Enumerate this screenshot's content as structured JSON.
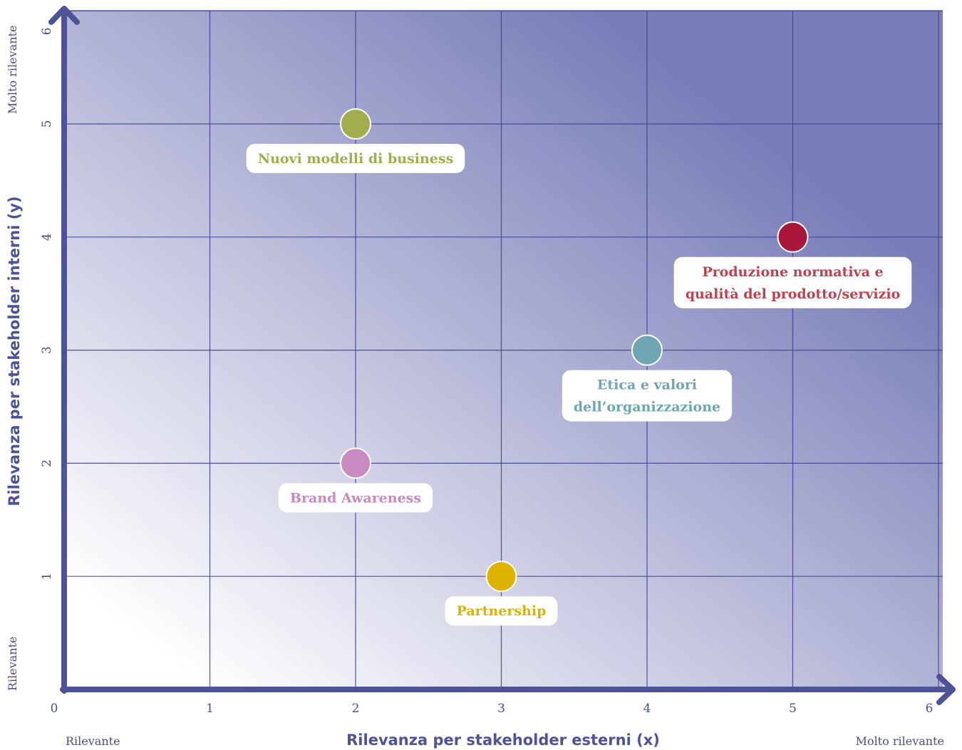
{
  "chart_data": {
    "type": "scatter",
    "title": "",
    "xlabel": "Rilevanza per stakeholder esterni (x)",
    "ylabel": "Rilevanza per stakeholder interni (y)",
    "xlim": [
      0,
      6
    ],
    "ylim": [
      0,
      6
    ],
    "x_ticks": [
      0,
      1,
      2,
      3,
      4,
      5,
      6
    ],
    "y_ticks": [
      1,
      2,
      3,
      4,
      5,
      6
    ],
    "grid": true,
    "x_low_label": "Rilevante",
    "x_high_label": "Molto rilevante",
    "y_low_label": "Rilevante",
    "y_high_label": "Molto rilevante",
    "points": [
      {
        "label_lines": [
          "Nuovi modelli di business"
        ],
        "x": 2,
        "y": 5,
        "color": "#a2ad4e"
      },
      {
        "label_lines": [
          "Produzione normativa e",
          "qualità del prodotto/servizio"
        ],
        "x": 5,
        "y": 4,
        "color": "#a8173a",
        "label_color": "#c0414f"
      },
      {
        "label_lines": [
          "Etica e valori",
          "dell’organizzazione"
        ],
        "x": 4,
        "y": 3,
        "color": "#6ea6b4"
      },
      {
        "label_lines": [
          "Brand Awareness"
        ],
        "x": 2,
        "y": 2,
        "color": "#c98ac0"
      },
      {
        "label_lines": [
          "Partnership"
        ],
        "x": 3,
        "y": 1,
        "color": "#ddb300"
      }
    ],
    "colors": {
      "axis": "#4e5296",
      "grid": "#3e4395",
      "gradient_light": "#ffffff",
      "gradient_dark": "#7a7db8"
    }
  }
}
